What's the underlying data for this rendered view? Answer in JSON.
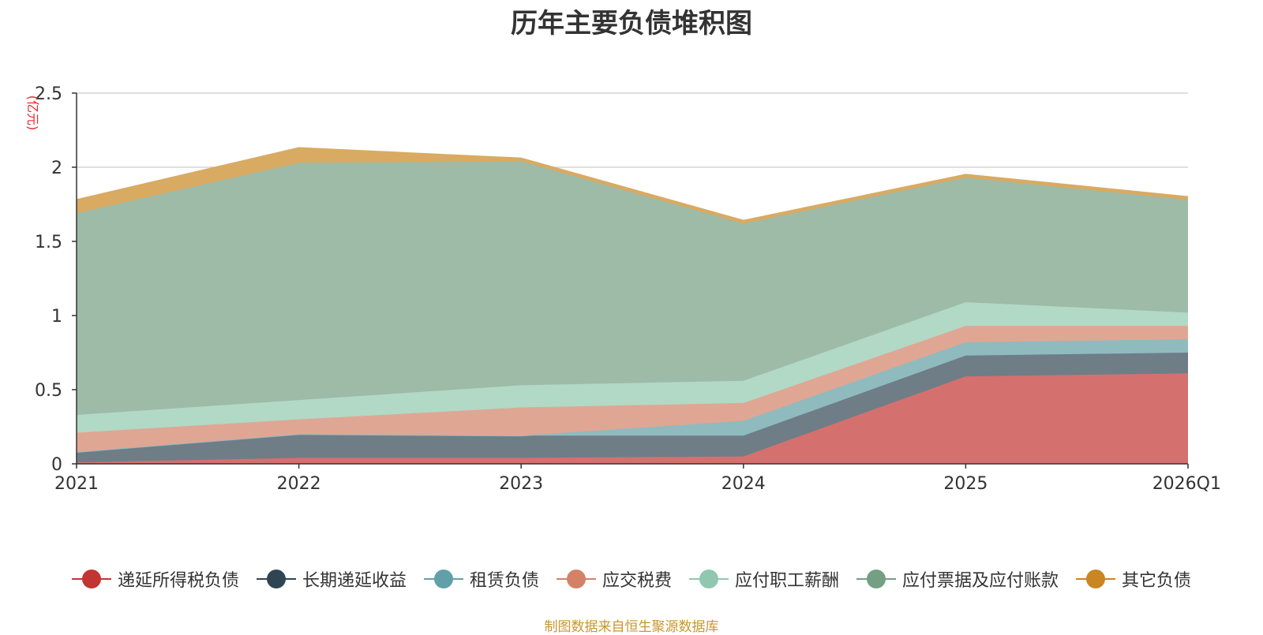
{
  "chart_data": {
    "type": "area",
    "stacked": true,
    "title": "历年主要负债堆积图",
    "ylabel": "(亿元)",
    "xlabel": "",
    "categories": [
      "2021",
      "2022",
      "2023",
      "2024",
      "2025",
      "2026Q1"
    ],
    "ylim": [
      0,
      2.5
    ],
    "yticks": [
      0,
      0.5,
      1,
      1.5,
      2,
      2.5
    ],
    "ytick_labels": [
      "0",
      "0.5",
      "1",
      "1.5",
      "2",
      "2.5"
    ],
    "grid": true,
    "legend_position": "bottom",
    "series": [
      {
        "name": "递延所得税负债",
        "color": "#c23531",
        "fill": "#d4716e",
        "values": [
          0.01,
          0.04,
          0.04,
          0.05,
          0.59,
          0.61
        ]
      },
      {
        "name": "长期递延收益",
        "color": "#2f4554",
        "fill": "#6f7d87",
        "values": [
          0.07,
          0.16,
          0.15,
          0.14,
          0.14,
          0.14
        ]
      },
      {
        "name": "租赁负债",
        "color": "#61a0a8",
        "fill": "#8fbbbf",
        "values": [
          0.0,
          0.0,
          0.0,
          0.1,
          0.09,
          0.09
        ]
      },
      {
        "name": "应交税费",
        "color": "#d48265",
        "fill": "#e0a694",
        "values": [
          0.13,
          0.1,
          0.19,
          0.12,
          0.11,
          0.09
        ]
      },
      {
        "name": "应付职工薪酬",
        "color": "#91c7ae",
        "fill": "#b1d9c5",
        "values": [
          0.12,
          0.13,
          0.15,
          0.15,
          0.16,
          0.09
        ]
      },
      {
        "name": "应付票据及应付账款",
        "color": "#749f83",
        "fill": "#9dbba7",
        "values": [
          1.36,
          1.6,
          1.51,
          1.06,
          0.84,
          0.76
        ]
      },
      {
        "name": "其它负债",
        "color": "#ca8622",
        "fill": "#d9aa62",
        "values": [
          0.09,
          0.1,
          0.02,
          0.02,
          0.02,
          0.02
        ]
      }
    ],
    "source_note": "制图数据来自恒生聚源数据库"
  }
}
